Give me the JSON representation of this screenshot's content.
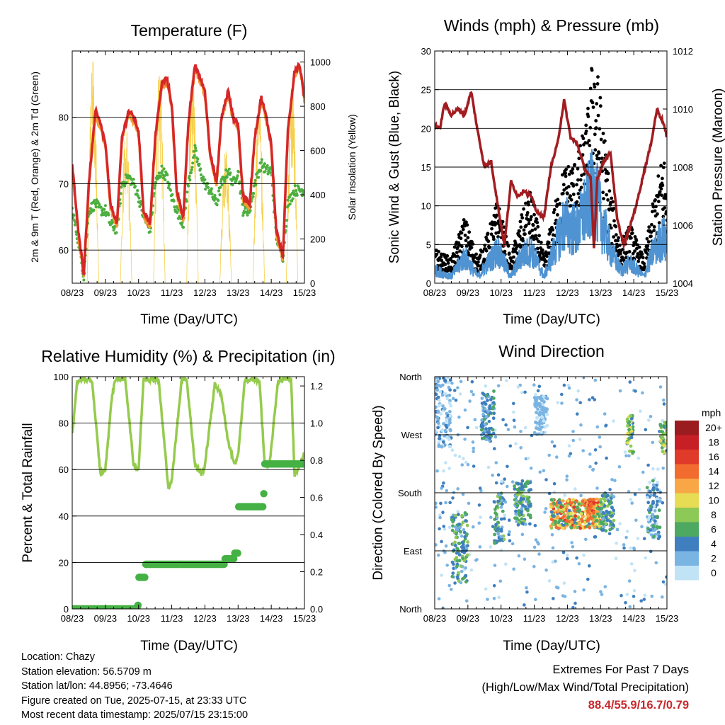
{
  "panels": {
    "temperature": {
      "title": "Temperature (F)",
      "ylabel_left": "2m & 9m T (Red, Orange) & 2m Td (Green)",
      "ylabel_right": "Solar Insolation (Yellow)",
      "xlabel": "Time (Day/UTC)",
      "left_ticks": [
        "60",
        "70",
        "80"
      ],
      "right_ticks": [
        "0",
        "200",
        "400",
        "600",
        "800",
        "1000"
      ],
      "x_ticks": [
        "08/23",
        "09/23",
        "10/23",
        "11/23",
        "12/23",
        "13/23",
        "14/23",
        "15/23"
      ]
    },
    "winds": {
      "title": "Winds (mph) & Pressure (mb)",
      "ylabel_left": "Sonic Wind & Gust (Blue, Black)",
      "ylabel_right": "Station Pressure (Maroon)",
      "xlabel": "Time (Day/UTC)",
      "left_ticks": [
        "0",
        "5",
        "10",
        "15",
        "20",
        "25",
        "30"
      ],
      "right_ticks": [
        "1004",
        "1006",
        "1008",
        "1010",
        "1012"
      ],
      "x_ticks": [
        "08/23",
        "09/23",
        "10/23",
        "11/23",
        "12/23",
        "13/23",
        "14/23",
        "15/23"
      ]
    },
    "humidity": {
      "title": "Relative Humidity (%) & Precipitation (in)",
      "ylabel_left": "Percent & Total Rainfall",
      "xlabel": "Time (Day/UTC)",
      "left_ticks": [
        "0",
        "20",
        "40",
        "60",
        "80",
        "100"
      ],
      "right_ticks": [
        "0.0",
        "0.2",
        "0.4",
        "0.6",
        "0.8",
        "1.0",
        "1.2"
      ],
      "x_ticks": [
        "08/23",
        "09/23",
        "10/23",
        "11/23",
        "12/23",
        "13/23",
        "14/23",
        "15/23"
      ]
    },
    "direction": {
      "title": "Wind Direction",
      "ylabel_left": "Direction (Colored By Speed)",
      "xlabel": "Time (Day/UTC)",
      "left_ticks": [
        "North",
        "East",
        "South",
        "West",
        "North"
      ],
      "x_ticks": [
        "08/23",
        "09/23",
        "10/23",
        "11/23",
        "12/23",
        "13/23",
        "14/23",
        "15/23"
      ],
      "colorbar_unit": "mph",
      "colorbar_labels": [
        "20+",
        "18",
        "16",
        "14",
        "12",
        "10",
        "8",
        "6",
        "4",
        "2",
        "0"
      ],
      "colorbar_colors": [
        "#9b1c1f",
        "#c62026",
        "#e03a2a",
        "#f26b2f",
        "#f9a646",
        "#e8dc55",
        "#8dc956",
        "#4da862",
        "#3f7fc0",
        "#7ab4e2",
        "#c1e3f6"
      ]
    }
  },
  "footer": {
    "location": "Location: Chazy",
    "elevation": "Station elevation: 56.5709 m",
    "latlon": "Station lat/lon: 44.8956; -73.4646",
    "created": "Figure created on Tue, 2025-07-15, at 23:33 UTC",
    "recent": "Most recent data timestamp: 2025/07/15 23:15:00"
  },
  "extremes": {
    "title": "Extremes For Past 7 Days",
    "subtitle": "(High/Low/Max Wind/Total Precipitation)",
    "values": "88.4/55.9/16.7/0.79"
  },
  "colors": {
    "temp_2m": "#d62728",
    "temp_9m": "#f39c34",
    "dewpoint": "#4caf3f",
    "solar": "#f6d04d",
    "wind": "#4f93d2",
    "gust": "#000000",
    "pressure": "#a11d21",
    "rh": "#95cb4d",
    "precip": "#45b144"
  },
  "chart_data": [
    {
      "type": "line",
      "panel": "temperature",
      "x_range_days": [
        8,
        15
      ],
      "ylim": [
        55,
        90
      ],
      "ylim_right": [
        0,
        1050
      ],
      "series": [
        {
          "name": "2m T (Red)",
          "axis": "left",
          "x": [
            8.0,
            8.2,
            8.35,
            8.5,
            8.7,
            8.85,
            9.0,
            9.15,
            9.35,
            9.5,
            9.7,
            9.85,
            10.0,
            10.15,
            10.35,
            10.5,
            10.7,
            10.85,
            11.0,
            11.15,
            11.35,
            11.5,
            11.7,
            11.85,
            12.0,
            12.15,
            12.35,
            12.5,
            12.7,
            12.85,
            13.0,
            13.15,
            13.35,
            13.5,
            13.7,
            13.85,
            14.0,
            14.15,
            14.35,
            14.5,
            14.7,
            14.85,
            15.0
          ],
          "y": [
            73,
            62,
            56.5,
            70,
            81,
            79,
            76,
            67,
            64,
            77,
            81,
            80,
            78,
            66,
            64,
            77,
            85,
            86,
            82,
            69,
            65,
            79,
            88,
            86,
            84,
            75,
            70,
            80,
            84,
            80,
            79,
            68,
            67,
            77,
            83,
            80,
            76,
            63,
            59,
            78,
            87,
            88,
            83
          ]
        },
        {
          "name": "Td (Green)",
          "axis": "left",
          "x": [
            8.0,
            8.2,
            8.35,
            8.5,
            8.7,
            8.85,
            9.0,
            9.15,
            9.35,
            9.5,
            9.7,
            9.85,
            10.0,
            10.15,
            10.35,
            10.5,
            10.7,
            10.85,
            11.0,
            11.15,
            11.35,
            11.5,
            11.7,
            11.85,
            12.0,
            12.15,
            12.35,
            12.5,
            12.7,
            12.85,
            13.0,
            13.15,
            13.35,
            13.5,
            13.7,
            13.85,
            14.0,
            14.15,
            14.35,
            14.5,
            14.7,
            14.85,
            15.0
          ],
          "y": [
            66,
            61,
            56,
            66,
            67,
            66,
            66,
            64,
            63,
            70,
            71,
            70,
            68,
            65,
            63,
            70,
            72,
            71,
            68,
            66,
            64,
            70,
            75,
            72,
            70,
            69,
            67,
            70,
            72,
            70,
            72,
            66,
            66,
            70,
            73,
            72,
            72,
            62,
            59,
            67,
            69,
            69,
            69
          ]
        },
        {
          "name": "Solar Insolation (Yellow)",
          "axis": "right",
          "x": [
            8.45,
            8.62,
            8.8,
            9.45,
            9.62,
            9.8,
            10.45,
            10.62,
            10.8,
            11.45,
            11.62,
            11.8,
            12.45,
            12.62,
            12.8,
            13.45,
            13.62,
            13.8,
            14.45,
            14.62,
            14.8
          ],
          "y": [
            0,
            1000,
            0,
            0,
            700,
            0,
            0,
            950,
            0,
            0,
            950,
            0,
            0,
            600,
            0,
            0,
            800,
            0,
            0,
            900,
            0
          ]
        }
      ]
    },
    {
      "type": "line",
      "panel": "winds",
      "x_range_days": [
        8,
        15
      ],
      "ylim": [
        0,
        30
      ],
      "ylim_right": [
        1004,
        1012
      ],
      "series": [
        {
          "name": "Wind (Blue)",
          "axis": "left",
          "x": [
            8.0,
            8.5,
            8.9,
            9.3,
            9.6,
            9.9,
            10.3,
            10.6,
            10.9,
            11.3,
            11.6,
            11.9,
            12.3,
            12.6,
            12.8,
            13.0,
            13.3,
            13.6,
            13.9,
            14.3,
            14.6,
            14.9,
            15.0
          ],
          "y": [
            2,
            1,
            4,
            1,
            3,
            5,
            1,
            4,
            5,
            1,
            5,
            9,
            8,
            12,
            14,
            10,
            5,
            2,
            3,
            1,
            5,
            7,
            5
          ]
        },
        {
          "name": "Gust (Black)",
          "axis": "left",
          "x": [
            8.0,
            8.5,
            8.9,
            9.3,
            9.6,
            9.9,
            10.3,
            10.6,
            10.9,
            11.3,
            11.6,
            11.9,
            12.3,
            12.6,
            12.8,
            13.0,
            13.3,
            13.6,
            13.9,
            14.3,
            14.6,
            14.9,
            15.0
          ],
          "y": [
            4,
            3,
            8,
            3,
            6,
            10,
            3,
            8,
            11,
            3,
            9,
            14,
            15,
            20,
            29,
            22,
            11,
            5,
            7,
            3,
            10,
            16,
            11
          ]
        },
        {
          "name": "Station Pressure (Maroon)",
          "axis": "right",
          "x": [
            8.0,
            8.15,
            8.3,
            8.5,
            8.7,
            8.9,
            9.1,
            9.3,
            9.5,
            9.7,
            9.9,
            10.1,
            10.3,
            10.5,
            10.7,
            10.9,
            11.1,
            11.3,
            11.5,
            11.7,
            11.9,
            12.1,
            12.3,
            12.5,
            12.7,
            12.8,
            12.9,
            13.1,
            13.3,
            13.5,
            13.7,
            13.9,
            14.1,
            14.3,
            14.5,
            14.7,
            14.9,
            15.0
          ],
          "y": [
            1009.5,
            1009.3,
            1010.2,
            1009.8,
            1010.0,
            1009.8,
            1010.6,
            1009.2,
            1008.0,
            1008.2,
            1006.7,
            1005.3,
            1007.5,
            1007.0,
            1007.2,
            1007.0,
            1006.4,
            1006.3,
            1008.0,
            1008.8,
            1010.3,
            1009.0,
            1008.8,
            1008.0,
            1007.6,
            1005.2,
            1007.6,
            1008.2,
            1008.5,
            1006.2,
            1005.3,
            1006.0,
            1006.8,
            1007.8,
            1008.7,
            1010.0,
            1009.5,
            1009.0
          ]
        }
      ]
    },
    {
      "type": "line",
      "panel": "humidity",
      "x_range_days": [
        8,
        15
      ],
      "ylim": [
        0,
        100
      ],
      "ylim_right": [
        0,
        1.25
      ],
      "series": [
        {
          "name": "Relative Humidity",
          "axis": "left",
          "x": [
            8.0,
            8.15,
            8.3,
            8.6,
            8.85,
            9.0,
            9.2,
            9.3,
            9.6,
            9.85,
            10.0,
            10.15,
            10.3,
            10.6,
            10.9,
            11.0,
            11.3,
            11.45,
            11.7,
            11.9,
            12.0,
            12.3,
            12.5,
            12.7,
            12.9,
            13.0,
            13.2,
            13.4,
            13.65,
            13.8,
            13.95,
            14.2,
            14.4,
            14.6,
            14.7,
            15.0
          ],
          "y": [
            75,
            98,
            99,
            98,
            58,
            60,
            92,
            99,
            99,
            62,
            60,
            99,
            99,
            99,
            52,
            55,
            99,
            99,
            62,
            58,
            62,
            97,
            92,
            72,
            62,
            66,
            98,
            99,
            98,
            62,
            62,
            98,
            99,
            99,
            57,
            67
          ]
        },
        {
          "name": "Total Precipitation",
          "axis": "right",
          "x": [
            8.0,
            9.85,
            9.98,
            10.0,
            10.2,
            12.5,
            12.6,
            12.9,
            13.0,
            13.7,
            13.75,
            13.8,
            15.0
          ],
          "y": [
            0.0,
            0.0,
            0.02,
            0.17,
            0.24,
            0.24,
            0.27,
            0.3,
            0.55,
            0.55,
            0.62,
            0.78,
            0.78
          ]
        }
      ]
    },
    {
      "type": "scatter",
      "panel": "direction",
      "x_range_days": [
        8,
        15
      ],
      "ylim_degrees": [
        0,
        360
      ],
      "color_by": "wind speed (mph)",
      "clusters": [
        {
          "x": [
            8.0,
            8.5
          ],
          "dir": [
            250,
            360
          ],
          "speed": [
            0,
            4
          ]
        },
        {
          "x": [
            8.5,
            9.0
          ],
          "dir": [
            40,
            150
          ],
          "speed": [
            2,
            8
          ]
        },
        {
          "x": [
            9.4,
            9.8
          ],
          "dir": [
            260,
            340
          ],
          "speed": [
            2,
            6
          ]
        },
        {
          "x": [
            9.8,
            10.1
          ],
          "dir": [
            100,
            180
          ],
          "speed": [
            2,
            8
          ]
        },
        {
          "x": [
            10.4,
            10.9
          ],
          "dir": [
            130,
            200
          ],
          "speed": [
            2,
            8
          ]
        },
        {
          "x": [
            11.0,
            11.4
          ],
          "dir": [
            270,
            330
          ],
          "speed": [
            0,
            3
          ]
        },
        {
          "x": [
            11.5,
            13.0
          ],
          "dir": [
            125,
            170
          ],
          "speed": [
            4,
            16
          ]
        },
        {
          "x": [
            12.6,
            12.8
          ],
          "dir": [
            140,
            170
          ],
          "speed": [
            12,
            16
          ]
        },
        {
          "x": [
            13.0,
            13.4
          ],
          "dir": [
            120,
            180
          ],
          "speed": [
            2,
            8
          ]
        },
        {
          "x": [
            13.8,
            14.0
          ],
          "dir": [
            240,
            300
          ],
          "speed": [
            4,
            10
          ]
        },
        {
          "x": [
            14.4,
            14.8
          ],
          "dir": [
            110,
            200
          ],
          "speed": [
            0,
            6
          ]
        },
        {
          "x": [
            14.8,
            15.0
          ],
          "dir": [
            240,
            290
          ],
          "speed": [
            4,
            10
          ]
        }
      ]
    }
  ]
}
